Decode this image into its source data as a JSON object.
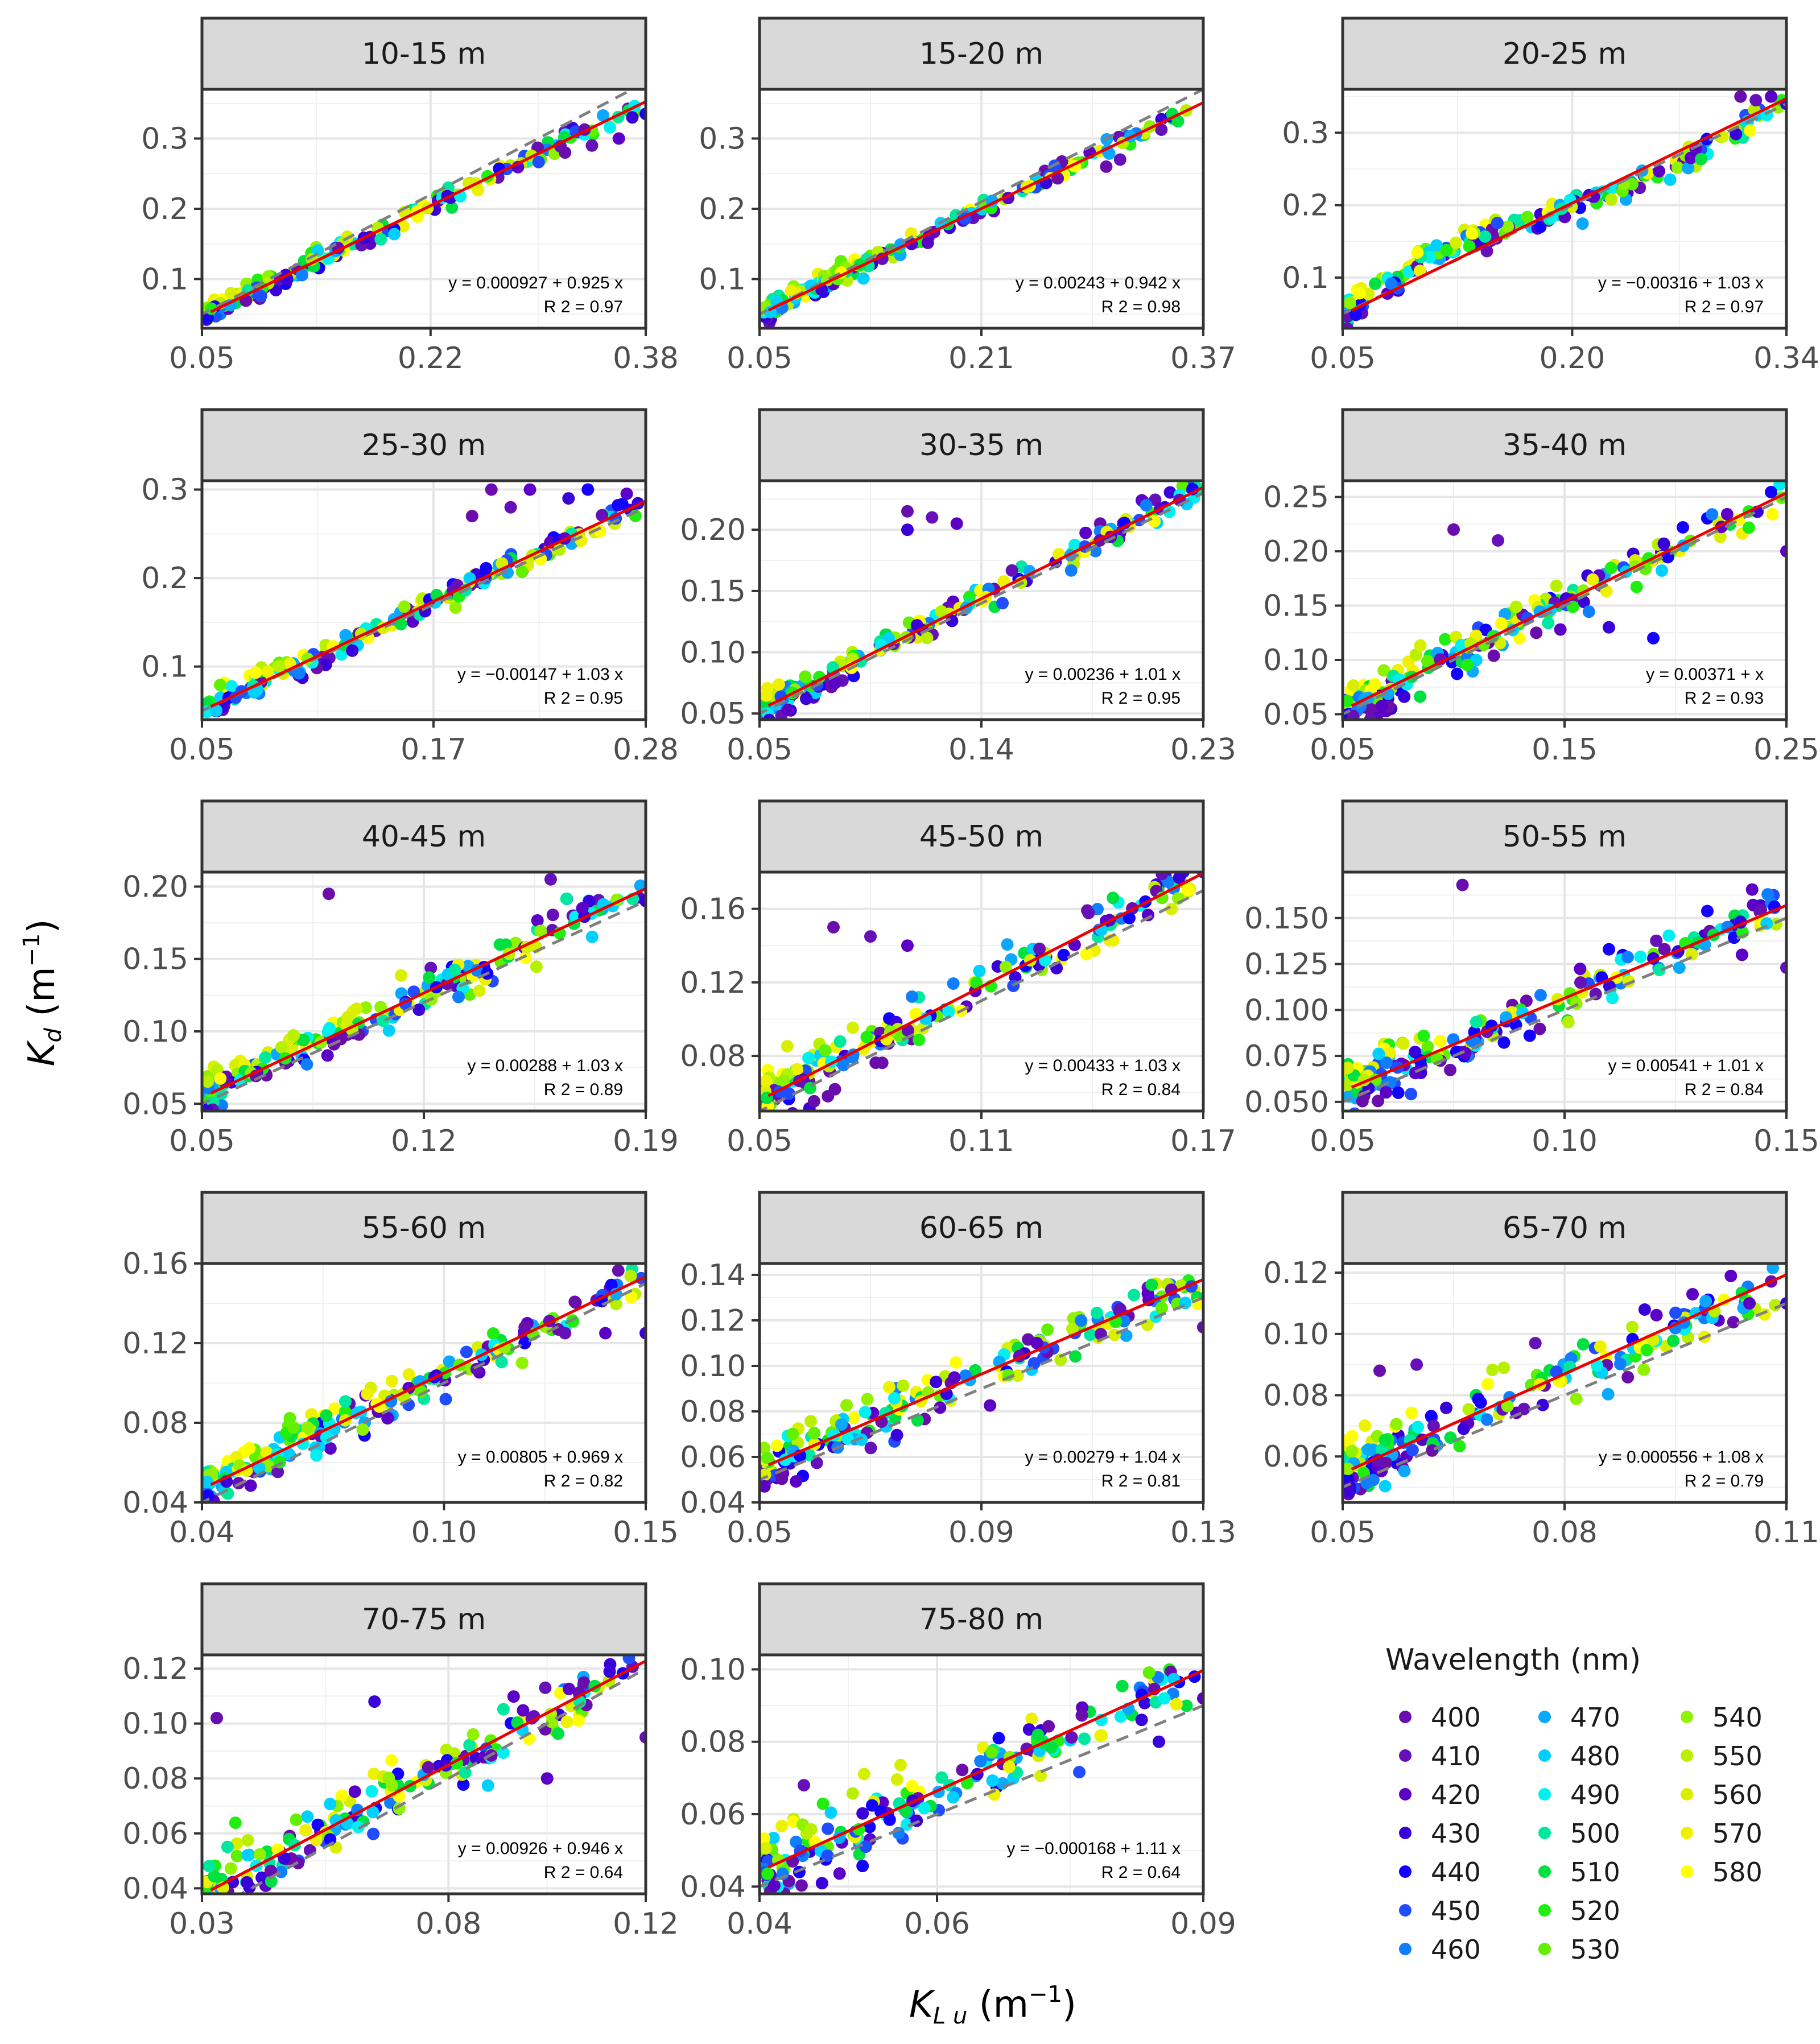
{
  "chart_data": {
    "type": "scatter",
    "xlabel": "K_Lu (m^-1)",
    "ylabel": "K_d (m^-1)",
    "legend": {
      "title": "Wavelength (nm)",
      "entries": [
        {
          "label": "400",
          "color": "#6a0dad"
        },
        {
          "label": "410",
          "color": "#6510b8"
        },
        {
          "label": "420",
          "color": "#5c00c8"
        },
        {
          "label": "430",
          "color": "#3a00d9"
        },
        {
          "label": "440",
          "color": "#1400ff"
        },
        {
          "label": "450",
          "color": "#1f4dff"
        },
        {
          "label": "460",
          "color": "#0f7fff"
        },
        {
          "label": "470",
          "color": "#0aa8ff"
        },
        {
          "label": "480",
          "color": "#00d0ff"
        },
        {
          "label": "490",
          "color": "#00f0f0"
        },
        {
          "label": "500",
          "color": "#00e8a0"
        },
        {
          "label": "510",
          "color": "#00e040"
        },
        {
          "label": "520",
          "color": "#20ee10"
        },
        {
          "label": "530",
          "color": "#60f000"
        },
        {
          "label": "540",
          "color": "#90f200"
        },
        {
          "label": "550",
          "color": "#b8f000"
        },
        {
          "label": "560",
          "color": "#d8f000"
        },
        {
          "label": "570",
          "color": "#eef200"
        },
        {
          "label": "580",
          "color": "#ffff00"
        }
      ]
    },
    "panels": [
      {
        "title": "10-15 m",
        "xlim": [
          0.05,
          0.38
        ],
        "xticks": [
          "0.05",
          "0.22",
          "0.38"
        ],
        "ylim": [
          0.03,
          0.37
        ],
        "yticks": [
          "0.1",
          "0.2",
          "0.3"
        ],
        "intercept": 0.000927,
        "slope": 0.925,
        "eq": "y  =  0.000927 + 0.925  x",
        "r2": "R 2  =  0.97",
        "curve": "lin",
        "spread": 0.012,
        "outliers": [
          [
            0.32,
            0.28
          ],
          [
            0.34,
            0.29
          ],
          [
            0.36,
            0.3
          ],
          [
            0.37,
            0.33
          ],
          [
            0.38,
            0.335
          ]
        ]
      },
      {
        "title": "15-20 m",
        "xlim": [
          0.05,
          0.37
        ],
        "xticks": [
          "0.05",
          "0.21",
          "0.37"
        ],
        "ylim": [
          0.03,
          0.37
        ],
        "yticks": [
          "0.1",
          "0.2",
          "0.3"
        ],
        "intercept": 0.00243,
        "slope": 0.942,
        "eq": "y  =  0.00243 + 0.942  x",
        "r2": "R 2  =  0.98",
        "curve": "lin",
        "spread": 0.01,
        "outliers": [
          [
            0.3,
            0.26
          ],
          [
            0.31,
            0.27
          ]
        ]
      },
      {
        "title": "20-25 m",
        "xlim": [
          0.05,
          0.34
        ],
        "xticks": [
          "0.05",
          "0.20",
          "0.34"
        ],
        "ylim": [
          0.03,
          0.36
        ],
        "yticks": [
          "0.1",
          "0.2",
          "0.3"
        ],
        "intercept": -0.00316,
        "slope": 1.03,
        "eq": "y  =  −0.00316 + 1.03  x",
        "r2": "R 2  =  0.97",
        "curve": "s",
        "spread": 0.014,
        "outliers": [
          [
            0.31,
            0.35
          ],
          [
            0.32,
            0.345
          ],
          [
            0.33,
            0.35
          ],
          [
            0.34,
            0.34
          ]
        ]
      },
      {
        "title": "25-30 m",
        "xlim": [
          0.05,
          0.28
        ],
        "xticks": [
          "0.05",
          "0.17",
          "0.28"
        ],
        "ylim": [
          0.04,
          0.31
        ],
        "yticks": [
          "0.1",
          "0.2",
          "0.3"
        ],
        "intercept": -0.00147,
        "slope": 1.03,
        "eq": "y  =  −0.00147 + 1.03  x",
        "r2": "R 2  =  0.95",
        "curve": "lin",
        "spread": 0.012,
        "outliers": [
          [
            0.2,
            0.3
          ],
          [
            0.21,
            0.28
          ],
          [
            0.22,
            0.3
          ],
          [
            0.24,
            0.29
          ],
          [
            0.25,
            0.3
          ],
          [
            0.19,
            0.27
          ]
        ]
      },
      {
        "title": "30-35 m",
        "xlim": [
          0.05,
          0.23
        ],
        "xticks": [
          "0.05",
          "0.14",
          "0.23"
        ],
        "ylim": [
          0.045,
          0.24
        ],
        "yticks": [
          "0.05",
          "0.10",
          "0.15",
          "0.20"
        ],
        "intercept": 0.00236,
        "slope": 1.01,
        "eq": "y  =  0.00236 + 1.01  x",
        "r2": "R 2  =  0.95",
        "curve": "lin",
        "spread": 0.01,
        "outliers": [
          [
            0.11,
            0.215
          ],
          [
            0.12,
            0.21
          ],
          [
            0.13,
            0.205
          ],
          [
            0.11,
            0.2
          ]
        ]
      },
      {
        "title": "35-40 m",
        "xlim": [
          0.05,
          0.25
        ],
        "xticks": [
          "0.05",
          "0.15",
          "0.25"
        ],
        "ylim": [
          0.045,
          0.265
        ],
        "yticks": [
          "0.05",
          "0.10",
          "0.15",
          "0.20",
          "0.25"
        ],
        "intercept": 0.00371,
        "slope": 1.0,
        "eq": "y  =  0.00371 +   x",
        "r2": "R 2  =  0.93",
        "curve": "lin",
        "spread": 0.014,
        "outliers": [
          [
            0.1,
            0.22
          ],
          [
            0.12,
            0.21
          ],
          [
            0.25,
            0.2
          ],
          [
            0.17,
            0.13
          ],
          [
            0.19,
            0.12
          ]
        ]
      },
      {
        "title": "40-45 m",
        "xlim": [
          0.05,
          0.19
        ],
        "xticks": [
          "0.05",
          "0.12",
          "0.19"
        ],
        "ylim": [
          0.045,
          0.21
        ],
        "yticks": [
          "0.05",
          "0.10",
          "0.15",
          "0.20"
        ],
        "intercept": 0.00288,
        "slope": 1.03,
        "eq": "y  =  0.00288 + 1.03  x",
        "r2": "R 2  =  0.89",
        "curve": "lin",
        "spread": 0.012,
        "outliers": [
          [
            0.09,
            0.195
          ],
          [
            0.16,
            0.205
          ],
          [
            0.17,
            0.185
          ],
          [
            0.19,
            0.19
          ],
          [
            0.14,
            0.14
          ]
        ]
      },
      {
        "title": "45-50 m",
        "xlim": [
          0.05,
          0.17
        ],
        "xticks": [
          "0.05",
          "0.11",
          "0.17"
        ],
        "ylim": [
          0.05,
          0.18
        ],
        "yticks": [
          "0.08",
          "0.12",
          "0.16"
        ],
        "intercept": 0.00433,
        "slope": 1.03,
        "eq": "y  =  0.00433 + 1.03  x",
        "r2": "R 2  =  0.84",
        "curve": "lin",
        "spread": 0.011,
        "outliers": [
          [
            0.07,
            0.15
          ],
          [
            0.08,
            0.145
          ],
          [
            0.09,
            0.14
          ],
          [
            0.17,
            0.18
          ],
          [
            0.15,
            0.155
          ]
        ]
      },
      {
        "title": "50-55 m",
        "xlim": [
          0.05,
          0.15
        ],
        "xticks": [
          "0.05",
          "0.10",
          "0.15"
        ],
        "ylim": [
          0.045,
          0.175
        ],
        "yticks": [
          "0.050",
          "0.075",
          "0.100",
          "0.125",
          "0.150"
        ],
        "intercept": 0.00541,
        "slope": 1.01,
        "eq": "y  =  0.00541 + 1.01  x",
        "r2": "R 2  =  0.84",
        "curve": "lin",
        "spread": 0.011,
        "outliers": [
          [
            0.077,
            0.168
          ],
          [
            0.15,
            0.123
          ],
          [
            0.14,
            0.13
          ],
          [
            0.12,
            0.128
          ],
          [
            0.11,
            0.133
          ]
        ]
      },
      {
        "title": "55-60 m",
        "xlim": [
          0.04,
          0.15
        ],
        "xticks": [
          "0.04",
          "0.10",
          "0.15"
        ],
        "ylim": [
          0.04,
          0.16
        ],
        "yticks": [
          "0.04",
          "0.08",
          "0.12",
          "0.16"
        ],
        "intercept": 0.00805,
        "slope": 0.969,
        "eq": "y  =  0.00805 + 0.969  x",
        "r2": "R 2  =  0.82",
        "curve": "lin",
        "spread": 0.009,
        "outliers": [
          [
            0.12,
            0.128
          ],
          [
            0.13,
            0.125
          ],
          [
            0.14,
            0.125
          ],
          [
            0.15,
            0.125
          ],
          [
            0.12,
            0.12
          ]
        ]
      },
      {
        "title": "60-65 m",
        "xlim": [
          0.05,
          0.13
        ],
        "xticks": [
          "0.05",
          "0.09",
          "0.13"
        ],
        "ylim": [
          0.04,
          0.145
        ],
        "yticks": [
          "0.04",
          "0.06",
          "0.08",
          "0.10",
          "0.12",
          "0.14"
        ],
        "intercept": 0.00279,
        "slope": 1.04,
        "eq": "y  =  0.00279 + 1.04  x",
        "r2": "R 2  =  0.81",
        "curve": "lin",
        "spread": 0.009,
        "outliers": [
          [
            0.13,
            0.117
          ],
          [
            0.115,
            0.125
          ],
          [
            0.1,
            0.11
          ]
        ]
      },
      {
        "title": "65-70 m",
        "xlim": [
          0.05,
          0.11
        ],
        "xticks": [
          "0.05",
          "0.08",
          "0.11"
        ],
        "ylim": [
          0.045,
          0.123
        ],
        "yticks": [
          "0.06",
          "0.08",
          "0.10",
          "0.12"
        ],
        "intercept": 0.000556,
        "slope": 1.08,
        "eq": "y  =  0.000556 + 1.08  x",
        "r2": "R 2  =  0.79",
        "curve": "lin",
        "spread": 0.008,
        "outliers": [
          [
            0.055,
            0.088
          ],
          [
            0.06,
            0.09
          ],
          [
            0.105,
            0.11
          ],
          [
            0.11,
            0.11
          ]
        ]
      },
      {
        "title": "70-75 m",
        "xlim": [
          0.03,
          0.12
        ],
        "xticks": [
          "0.03",
          "0.08",
          "0.12"
        ],
        "ylim": [
          0.038,
          0.125
        ],
        "yticks": [
          "0.04",
          "0.06",
          "0.08",
          "0.10",
          "0.12"
        ],
        "intercept": 0.00926,
        "slope": 0.946,
        "eq": "y  =  0.00926 + 0.946  x",
        "r2": "R 2  =  0.64",
        "curve": "lin",
        "spread": 0.009,
        "outliers": [
          [
            0.033,
            0.102
          ],
          [
            0.12,
            0.095
          ],
          [
            0.1,
            0.08
          ],
          [
            0.065,
            0.108
          ]
        ]
      },
      {
        "title": "75-80 m",
        "xlim": [
          0.04,
          0.09
        ],
        "xticks": [
          "0.04",
          "0.06",
          "0.09"
        ],
        "ylim": [
          0.038,
          0.104
        ],
        "yticks": [
          "0.04",
          "0.06",
          "0.08",
          "0.10"
        ],
        "intercept": -0.000168,
        "slope": 1.11,
        "eq": "y  =  −0.000168 + 1.11  x",
        "r2": "R 2  =  0.64",
        "curve": "lin",
        "spread": 0.008,
        "outliers": [
          [
            0.037,
            0.052
          ],
          [
            0.045,
            0.068
          ],
          [
            0.09,
            0.092
          ],
          [
            0.085,
            0.08
          ]
        ]
      }
    ]
  }
}
